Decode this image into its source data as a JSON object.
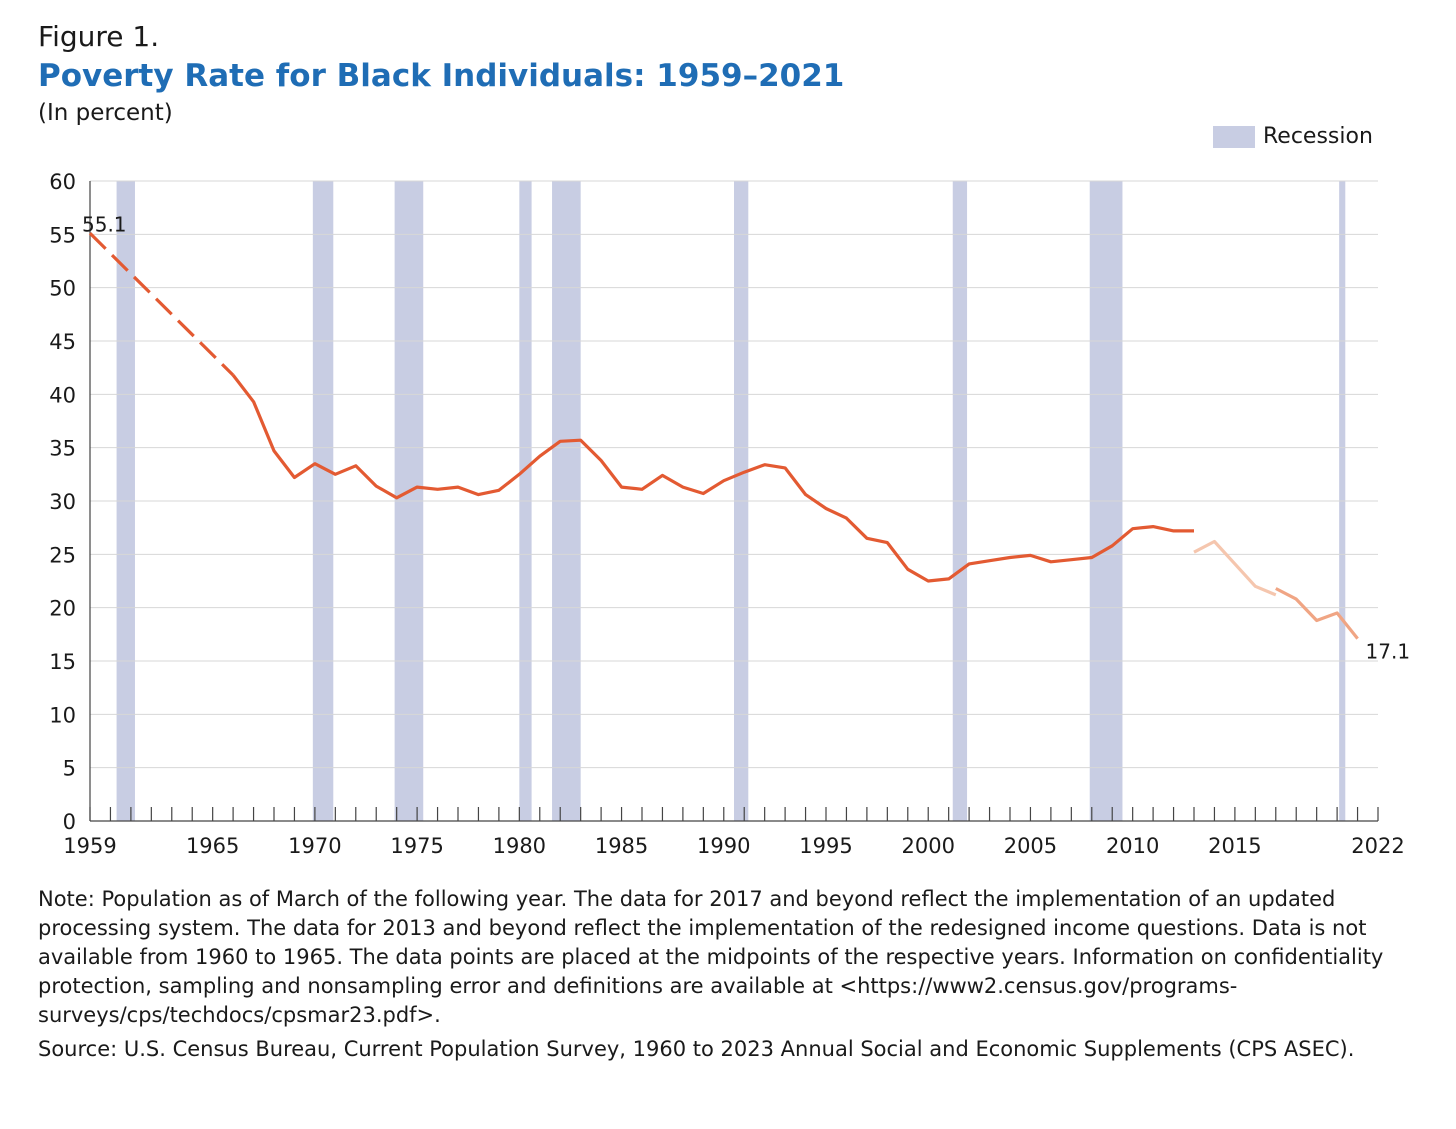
{
  "header": {
    "figure_label": "Figure 1.",
    "title": "Poverty Rate for Black Individuals: 1959–2021",
    "unit": "(In percent)"
  },
  "legend": {
    "label": "Recession",
    "color": "#c8cde3"
  },
  "colors": {
    "line_main": "#e35a32",
    "line_2013": "#f5c6ae",
    "line_2017": "#f0a584",
    "grid": "#d7d7d7",
    "axis": "#444444"
  },
  "chart_data": {
    "type": "line",
    "title": "Poverty Rate for Black Individuals: 1959–2021",
    "ylabel": "(In percent)",
    "xlim": [
      1959,
      2022
    ],
    "ylim": [
      0,
      60
    ],
    "y_ticks": [
      0,
      5,
      10,
      15,
      20,
      25,
      30,
      35,
      40,
      45,
      50,
      55,
      60
    ],
    "x_tick_labels": [
      1959,
      1965,
      1970,
      1975,
      1980,
      1985,
      1990,
      1995,
      2000,
      2005,
      2010,
      2015,
      2022
    ],
    "grid": true,
    "legend_placement": "top-right",
    "recessions": [
      [
        1960.3,
        1961.2
      ],
      [
        1969.9,
        1970.9
      ],
      [
        1973.9,
        1975.3
      ],
      [
        1980.0,
        1980.6
      ],
      [
        1981.6,
        1983.0
      ],
      [
        1990.5,
        1991.2
      ],
      [
        2001.2,
        2001.9
      ],
      [
        2007.9,
        2009.5
      ],
      [
        2020.1,
        2020.4
      ]
    ],
    "annotations": [
      {
        "text": "55.1",
        "x": 1959,
        "y": 55.1
      },
      {
        "text": "17.1",
        "x": 2021,
        "y": 17.1
      }
    ],
    "series": [
      {
        "style": "dashed",
        "values": [
          [
            1959,
            55.1
          ],
          [
            1966,
            41.8
          ]
        ]
      },
      {
        "style": "solid",
        "values": [
          [
            1966,
            41.8
          ],
          [
            1967,
            39.3
          ],
          [
            1968,
            34.7
          ],
          [
            1969,
            32.2
          ],
          [
            1970,
            33.5
          ],
          [
            1971,
            32.5
          ],
          [
            1972,
            33.3
          ],
          [
            1973,
            31.4
          ],
          [
            1974,
            30.3
          ],
          [
            1975,
            31.3
          ],
          [
            1976,
            31.1
          ],
          [
            1977,
            31.3
          ],
          [
            1978,
            30.6
          ],
          [
            1979,
            31.0
          ],
          [
            1980,
            32.5
          ],
          [
            1981,
            34.2
          ],
          [
            1982,
            35.6
          ],
          [
            1983,
            35.7
          ],
          [
            1984,
            33.8
          ],
          [
            1985,
            31.3
          ],
          [
            1986,
            31.1
          ],
          [
            1987,
            32.4
          ],
          [
            1988,
            31.3
          ],
          [
            1989,
            30.7
          ],
          [
            1990,
            31.9
          ],
          [
            1991,
            32.7
          ],
          [
            1992,
            33.4
          ],
          [
            1993,
            33.1
          ],
          [
            1994,
            30.6
          ],
          [
            1995,
            29.3
          ],
          [
            1996,
            28.4
          ],
          [
            1997,
            26.5
          ],
          [
            1998,
            26.1
          ],
          [
            1999,
            23.6
          ],
          [
            2000,
            22.5
          ],
          [
            2001,
            22.7
          ],
          [
            2002,
            24.1
          ],
          [
            2003,
            24.4
          ],
          [
            2004,
            24.7
          ],
          [
            2005,
            24.9
          ],
          [
            2006,
            24.3
          ],
          [
            2007,
            24.5
          ],
          [
            2008,
            24.7
          ],
          [
            2009,
            25.8
          ],
          [
            2010,
            27.4
          ],
          [
            2011,
            27.6
          ],
          [
            2012,
            27.2
          ],
          [
            2013,
            27.2
          ]
        ]
      },
      {
        "style": "solid",
        "values": [
          [
            2013,
            25.2
          ],
          [
            2014,
            26.2
          ],
          [
            2015,
            24.1
          ],
          [
            2016,
            22.0
          ],
          [
            2017,
            21.2
          ]
        ]
      },
      {
        "style": "solid",
        "values": [
          [
            2017,
            21.8
          ],
          [
            2018,
            20.8
          ],
          [
            2019,
            18.8
          ],
          [
            2020,
            19.5
          ],
          [
            2021,
            17.1
          ]
        ]
      }
    ]
  },
  "notes": {
    "note": "Note: Population as of March of the following year. The data for 2017 and beyond reflect the implementation of an updated processing system. The data for 2013 and beyond reflect the implementation of the redesigned income questions. Data is not available from 1960 to 1965. The data points are placed at the midpoints of the respective years. Information on confidentiality protection, sampling and nonsampling error and definitions are available at <https://www2.census.gov/programs-surveys/cps/techdocs/cpsmar23.pdf>.",
    "source": "Source: U.S. Census Bureau, Current Population Survey, 1960 to 2023 Annual Social and Economic Supplements (CPS ASEC)."
  }
}
